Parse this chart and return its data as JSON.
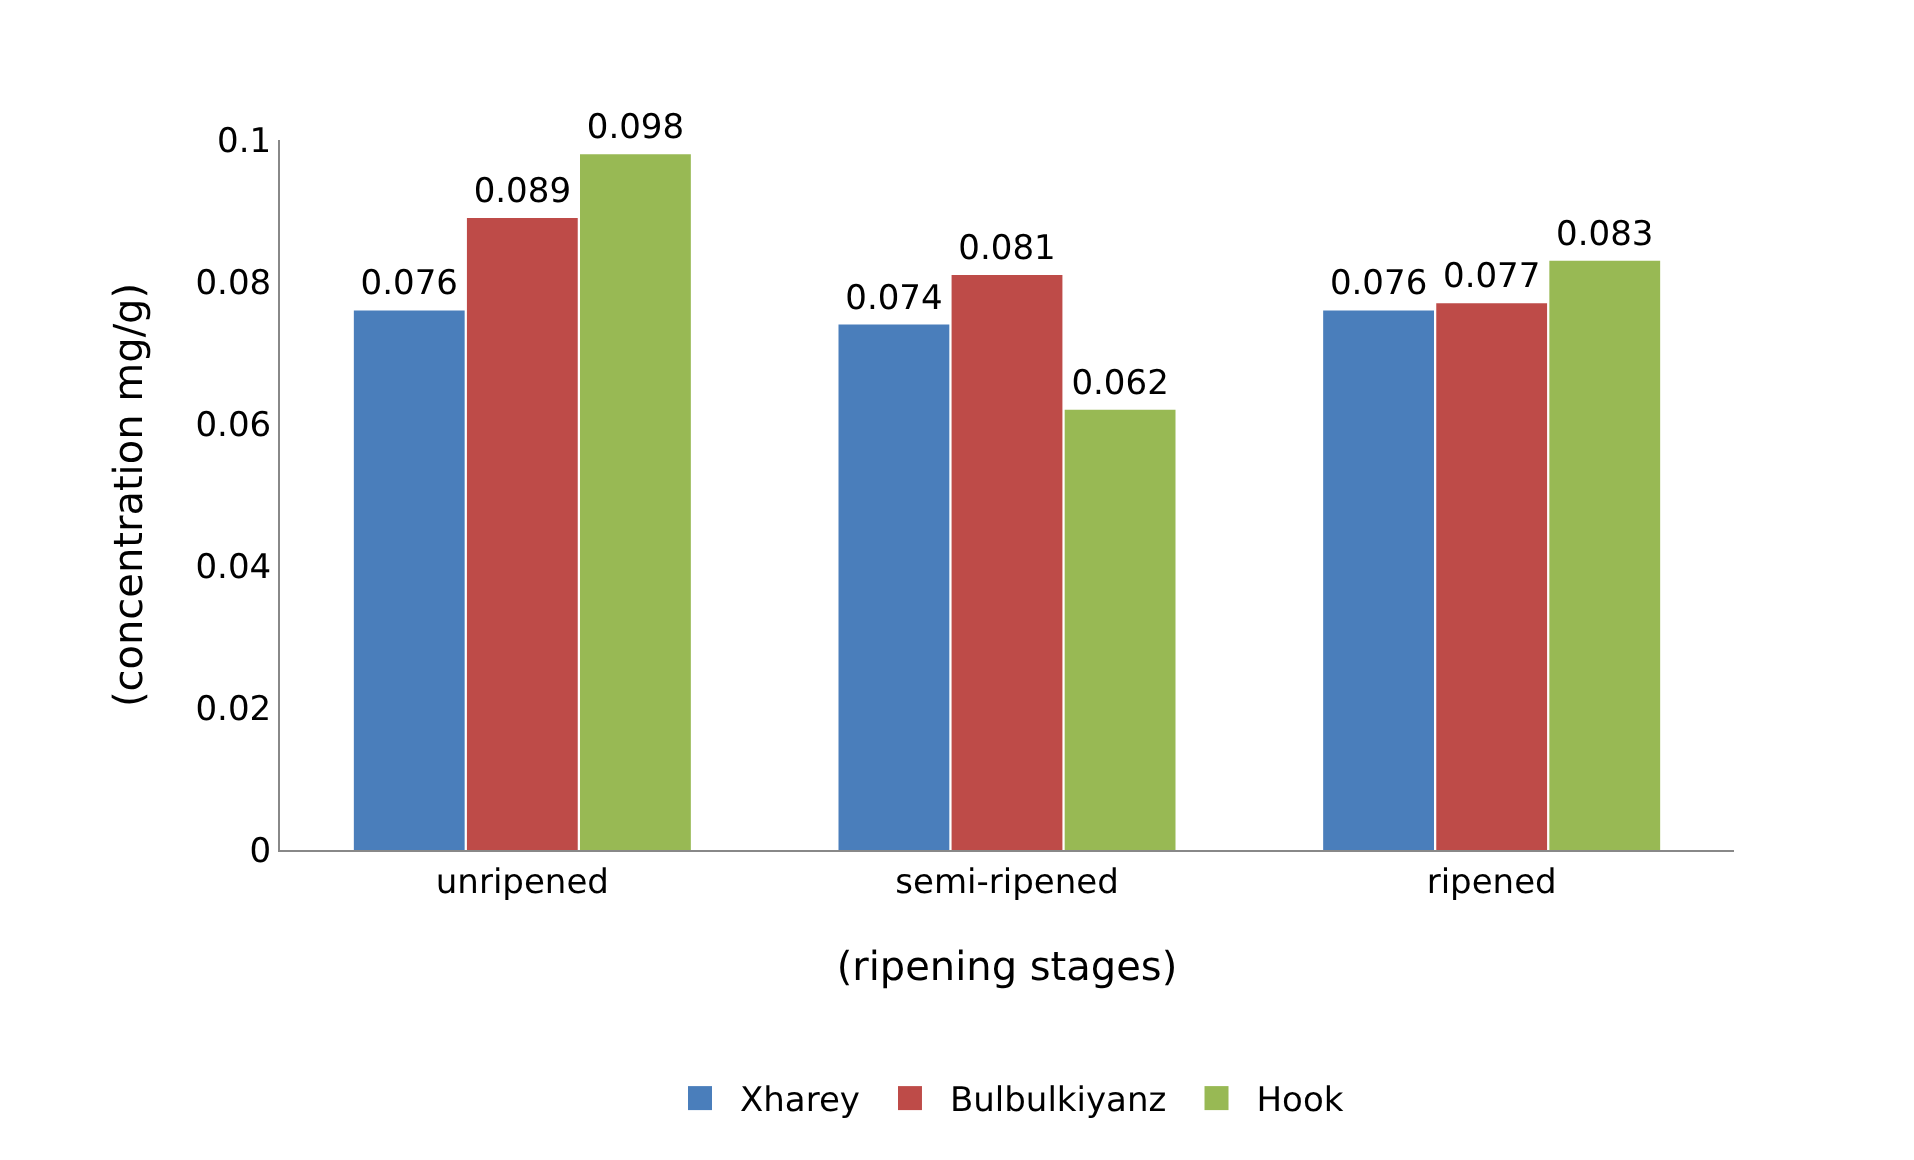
{
  "chart_data": {
    "type": "bar",
    "xlabel": "(ripening stages)",
    "ylabel": "(concentration mg/g)",
    "categories": [
      "unripened",
      "semi-ripened",
      "ripened"
    ],
    "series": [
      {
        "name": "Xharey",
        "color": "#4a7ebb",
        "values": [
          0.076,
          0.074,
          0.076
        ]
      },
      {
        "name": "Bulbulkiyanz",
        "color": "#be4b48",
        "values": [
          0.089,
          0.081,
          0.077
        ]
      },
      {
        "name": "Hook",
        "color": "#98b954",
        "values": [
          0.098,
          0.062,
          0.083
        ]
      }
    ],
    "ylim": [
      0,
      0.1
    ],
    "yticks": [
      0,
      0.02,
      0.04,
      0.06,
      0.08,
      0.1
    ],
    "grid": false,
    "legend": "bottom",
    "data_labels": true
  }
}
